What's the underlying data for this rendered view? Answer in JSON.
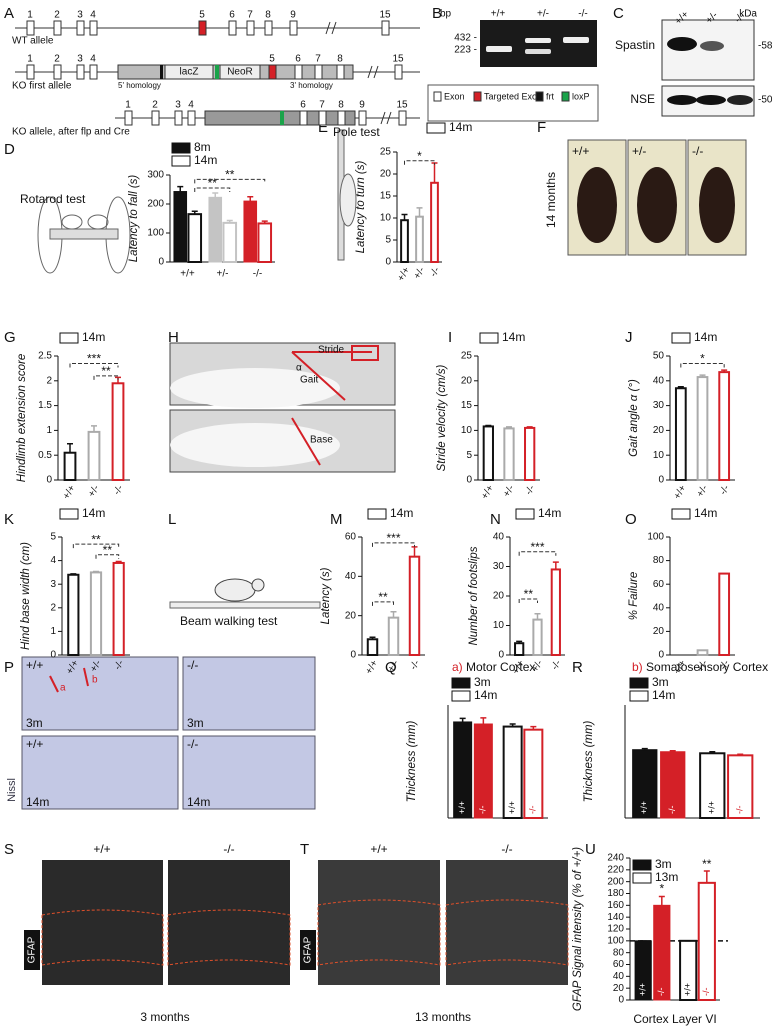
{
  "panel_letters": [
    "A",
    "B",
    "C",
    "D",
    "E",
    "F",
    "G",
    "H",
    "I",
    "J",
    "K",
    "L",
    "M",
    "N",
    "O",
    "P",
    "Q",
    "R",
    "S",
    "T",
    "U"
  ],
  "gene_diagram": {
    "alleles": [
      {
        "label": "WT allele",
        "exons": [
          "1",
          "2",
          "3",
          "4",
          "5",
          "6",
          "7",
          "8",
          "9",
          "15"
        ]
      },
      {
        "label": "KO first allele",
        "exons": [
          "1",
          "2",
          "3",
          "4",
          "5",
          "6",
          "7",
          "8",
          "15"
        ],
        "cassette": [
          "lacZ",
          "NeoR"
        ],
        "homology": [
          "5' homology",
          "3' homology"
        ]
      },
      {
        "label": "KO allele, after flp and Cre",
        "exons": [
          "1",
          "2",
          "3",
          "4",
          "6",
          "7",
          "8",
          "9",
          "15"
        ]
      }
    ]
  },
  "gel": {
    "unit": "bp",
    "lanes": [
      "+/+",
      "+/-",
      "-/-"
    ],
    "markers": [
      "432 -",
      "223 -"
    ]
  },
  "legend_a": [
    "Exon",
    "Targeted Exon",
    "frt",
    "loxP"
  ],
  "western": {
    "unit": "kDa",
    "lanes": [
      "+/+",
      "+/-",
      "-/-"
    ],
    "bands": [
      "Spastin",
      "NSE"
    ],
    "markers": [
      "-58",
      "-50"
    ]
  },
  "rotarod_label": "Rotarod test",
  "photos_f": {
    "genotypes": [
      "+/+",
      "+/-",
      "-/-"
    ],
    "age": "14 months"
  },
  "gait_h": [
    "Stride",
    "α",
    "Gait",
    "Base"
  ],
  "beam_label": "Beam walking test",
  "nissl_p": {
    "genotypes": [
      "+/+",
      "-/-",
      "+/+",
      "-/-"
    ],
    "ages": [
      "3m",
      "3m",
      "14m",
      "14m"
    ],
    "regions": [
      "a",
      "b"
    ],
    "stain": "Nissl"
  },
  "gfap_s": {
    "genotypes": [
      "+/+",
      "-/-"
    ],
    "stain": "GFAP",
    "age": "3 months"
  },
  "gfap_t": {
    "genotypes": [
      "+/+",
      "-/-"
    ],
    "stain": "GFAP",
    "age": "13 months"
  },
  "chart_data": [
    {
      "type": "bar",
      "ylabel": "Latency to fall (s)",
      "categories": [
        "+/+",
        "+/-",
        "-/-"
      ],
      "colors": [
        "#111111",
        "#c4c4c4",
        "#d42027"
      ],
      "series": [
        {
          "name": "8m",
          "filled": true,
          "values": [
            243,
            223,
            210
          ],
          "errors": [
            17,
            15,
            15
          ]
        },
        {
          "name": "14m",
          "filled": false,
          "values": [
            165,
            135,
            133
          ],
          "errors": [
            10,
            8,
            8
          ]
        }
      ],
      "ylim": [
        0,
        300
      ],
      "yticks": [
        0,
        100,
        200,
        300
      ],
      "annotations": [
        "**",
        "**"
      ]
    },
    {
      "type": "bar",
      "title": "Pole test",
      "ylabel": "Latency to turn (s)",
      "categories": [
        "+/+",
        "+/-",
        "-/-"
      ],
      "colors": [
        "#111111",
        "#aaaaaa",
        "#d42027"
      ],
      "series": [
        {
          "name": "14m",
          "filled": false,
          "values": [
            9.5,
            10.3,
            18
          ],
          "errors": [
            1.3,
            2,
            4.5
          ]
        }
      ],
      "ylim": [
        0,
        25
      ],
      "yticks": [
        0,
        5,
        10,
        15,
        20,
        25
      ],
      "annotations": [
        "*"
      ]
    },
    {
      "type": "bar",
      "ylabel": "Hindlimb extension score",
      "categories": [
        "+/+",
        "+/-",
        "-/-"
      ],
      "colors": [
        "#111111",
        "#aaaaaa",
        "#d42027"
      ],
      "series": [
        {
          "name": "14m",
          "filled": false,
          "values": [
            0.55,
            0.97,
            1.95
          ],
          "errors": [
            0.18,
            0.12,
            0.12
          ]
        }
      ],
      "ylim": [
        0,
        2.5
      ],
      "yticks": [
        0,
        0.5,
        1,
        1.5,
        2,
        2.5
      ],
      "annotations": [
        "***",
        "**"
      ]
    },
    {
      "type": "bar",
      "ylabel": "Stride velocity (cm/s)",
      "categories": [
        "+/+",
        "+/-",
        "-/-"
      ],
      "colors": [
        "#111111",
        "#aaaaaa",
        "#d42027"
      ],
      "series": [
        {
          "name": "14m",
          "filled": false,
          "values": [
            10.8,
            10.4,
            10.5
          ],
          "errors": [
            0.2,
            0.3,
            0.2
          ]
        }
      ],
      "ylim": [
        0,
        25
      ],
      "yticks": [
        0,
        5,
        10,
        15,
        20,
        25
      ],
      "annotations": []
    },
    {
      "type": "bar",
      "ylabel": "Gait angle α (°)",
      "categories": [
        "+/+",
        "+/-",
        "-/-"
      ],
      "colors": [
        "#111111",
        "#aaaaaa",
        "#d42027"
      ],
      "series": [
        {
          "name": "14m",
          "filled": false,
          "values": [
            37,
            41.5,
            43.5
          ],
          "errors": [
            0.6,
            0.8,
            0.8
          ]
        }
      ],
      "ylim": [
        0,
        50
      ],
      "yticks": [
        0,
        10,
        20,
        30,
        40,
        50
      ],
      "annotations": [
        "*"
      ]
    },
    {
      "type": "bar",
      "ylabel": "Hind base width (cm)",
      "categories": [
        "+/+",
        "+/-",
        "-/-"
      ],
      "colors": [
        "#111111",
        "#aaaaaa",
        "#d42027"
      ],
      "series": [
        {
          "name": "14m",
          "filled": false,
          "values": [
            3.4,
            3.5,
            3.9
          ],
          "errors": [
            0.04,
            0.04,
            0.06
          ]
        }
      ],
      "ylim": [
        0,
        5
      ],
      "yticks": [
        0,
        1,
        2,
        3,
        4,
        5
      ],
      "annotations": [
        "**",
        "**"
      ]
    },
    {
      "type": "bar",
      "ylabel": "Latency (s)",
      "categories": [
        "+/+",
        "+/-",
        "-/-"
      ],
      "colors": [
        "#111111",
        "#aaaaaa",
        "#d42027"
      ],
      "series": [
        {
          "name": "14m",
          "filled": false,
          "values": [
            8,
            19,
            50
          ],
          "errors": [
            1,
            3,
            5
          ]
        }
      ],
      "ylim": [
        0,
        60
      ],
      "yticks": [
        0,
        20,
        40,
        60
      ],
      "annotations": [
        "**",
        "***"
      ]
    },
    {
      "type": "bar",
      "ylabel": "Number of footslips",
      "categories": [
        "+/+",
        "+/-",
        "-/-"
      ],
      "colors": [
        "#111111",
        "#aaaaaa",
        "#d42027"
      ],
      "series": [
        {
          "name": "14m",
          "filled": false,
          "values": [
            4,
            12,
            29
          ],
          "errors": [
            0.6,
            2,
            2.5
          ]
        }
      ],
      "ylim": [
        0,
        40
      ],
      "yticks": [
        0,
        10,
        20,
        30,
        40
      ],
      "annotations": [
        "**",
        "***"
      ]
    },
    {
      "type": "bar",
      "ylabel": "% Failure",
      "categories": [
        "+/+",
        "+/-",
        "-/-"
      ],
      "colors": [
        "#111111",
        "#aaaaaa",
        "#d42027"
      ],
      "series": [
        {
          "name": "14m",
          "filled": false,
          "values": [
            0,
            4,
            69
          ]
        }
      ],
      "ylim": [
        0,
        100
      ],
      "yticks": [
        0,
        20,
        40,
        60,
        80,
        100
      ],
      "annotations": []
    },
    {
      "type": "bar",
      "title_prefix": "a)",
      "title": "Motor Cortex",
      "ylabel": "Thickness (mm)",
      "group_by": "series",
      "category_labels": "inside",
      "categories": [
        "+/+",
        "-/-"
      ],
      "colors": [
        "#111111",
        "#d42027"
      ],
      "series": [
        {
          "name": "3m",
          "filled": true,
          "values": [
            1.87,
            1.83
          ],
          "errors": [
            0.07,
            0.12
          ]
        },
        {
          "name": "14m",
          "filled": false,
          "values": [
            1.78,
            1.72
          ],
          "errors": [
            0.05,
            0.06
          ]
        }
      ],
      "ylim": [
        0,
        2.2
      ],
      "annotations": []
    },
    {
      "type": "bar",
      "title_prefix": "b)",
      "title": "Somatosensory Cortex",
      "ylabel": "Thickness (mm)",
      "group_by": "series",
      "category_labels": "inside",
      "categories": [
        "+/+",
        "-/-"
      ],
      "colors": [
        "#111111",
        "#d42027"
      ],
      "series": [
        {
          "name": "3m",
          "filled": true,
          "values": [
            1.33,
            1.29
          ],
          "errors": [
            0.02,
            0.02
          ]
        },
        {
          "name": "14m",
          "filled": false,
          "values": [
            1.26,
            1.22
          ],
          "errors": [
            0.03,
            0.02
          ]
        }
      ],
      "ylim": [
        0,
        2.2
      ],
      "annotations": []
    },
    {
      "type": "bar",
      "ylabel": "GFAP Signal intensity (% of +/+)",
      "xlabel": "Cortex Layer VI",
      "group_by": "series",
      "category_labels": "inside",
      "categories": [
        "+/+",
        "-/-"
      ],
      "colors": [
        "#111111",
        "#d42027"
      ],
      "series": [
        {
          "name": "3m",
          "filled": true,
          "values": [
            100,
            160
          ],
          "errors": [
            0,
            15
          ]
        },
        {
          "name": "13m",
          "filled": false,
          "values": [
            100,
            198
          ],
          "errors": [
            0,
            20
          ]
        }
      ],
      "ylim": [
        0,
        240
      ],
      "yticks": [
        0,
        20,
        40,
        60,
        80,
        100,
        120,
        140,
        160,
        180,
        200,
        220,
        240
      ],
      "reference_line": 100,
      "annotations": [
        "*",
        "**"
      ]
    }
  ]
}
